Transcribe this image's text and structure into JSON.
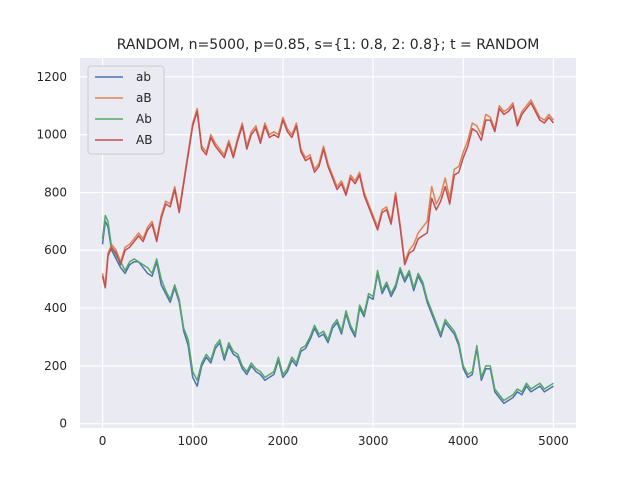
{
  "chart_data": {
    "type": "line",
    "title": "RANDOM, n=5000, p=0.85, s={1: 0.8, 2: 0.8}; t = RANDOM",
    "xlabel": "",
    "ylabel": "",
    "xlim": [
      -250,
      5250
    ],
    "ylim": [
      -15,
      1265
    ],
    "xticks": [
      0,
      1000,
      2000,
      3000,
      4000,
      5000
    ],
    "yticks": [
      0,
      200,
      400,
      600,
      800,
      1000,
      1200
    ],
    "grid": true,
    "legend_position": "top-left",
    "series": [
      {
        "name": "ab",
        "color": "#4c72b0",
        "x": [
          0,
          30,
          60,
          100,
          150,
          200,
          250,
          300,
          350,
          400,
          450,
          500,
          550,
          600,
          650,
          700,
          750,
          800,
          850,
          900,
          950,
          1000,
          1050,
          1100,
          1150,
          1200,
          1250,
          1300,
          1350,
          1400,
          1450,
          1500,
          1550,
          1600,
          1650,
          1700,
          1750,
          1800,
          1850,
          1900,
          1950,
          2000,
          2050,
          2100,
          2150,
          2200,
          2250,
          2300,
          2350,
          2400,
          2450,
          2500,
          2550,
          2600,
          2650,
          2700,
          2750,
          2800,
          2850,
          2900,
          2950,
          3000,
          3050,
          3100,
          3150,
          3200,
          3250,
          3300,
          3350,
          3400,
          3450,
          3500,
          3550,
          3600,
          3650,
          3700,
          3750,
          3800,
          3850,
          3900,
          3950,
          4000,
          4050,
          4100,
          4150,
          4200,
          4250,
          4300,
          4350,
          4400,
          4450,
          4500,
          4550,
          4600,
          4650,
          4700,
          4750,
          4800,
          4850,
          4900,
          4950,
          5000
        ],
        "values": [
          620,
          700,
          680,
          600,
          570,
          540,
          520,
          550,
          560,
          560,
          540,
          520,
          510,
          560,
          480,
          450,
          420,
          470,
          420,
          320,
          270,
          160,
          130,
          200,
          230,
          210,
          260,
          280,
          220,
          270,
          240,
          230,
          190,
          170,
          200,
          180,
          170,
          150,
          160,
          170,
          220,
          160,
          180,
          220,
          200,
          250,
          260,
          290,
          330,
          300,
          310,
          280,
          330,
          350,
          310,
          380,
          330,
          300,
          400,
          370,
          440,
          430,
          520,
          450,
          480,
          440,
          470,
          530,
          490,
          520,
          460,
          510,
          480,
          420,
          380,
          340,
          300,
          350,
          330,
          310,
          270,
          190,
          160,
          170,
          260,
          150,
          190,
          190,
          110,
          90,
          70,
          80,
          90,
          110,
          100,
          130,
          110,
          120,
          130,
          110,
          120,
          130
        ]
      },
      {
        "name": "aB",
        "color": "#dd8452",
        "x": [
          0,
          30,
          60,
          100,
          150,
          200,
          250,
          300,
          350,
          400,
          450,
          500,
          550,
          600,
          650,
          700,
          750,
          800,
          850,
          900,
          950,
          1000,
          1050,
          1100,
          1150,
          1200,
          1250,
          1300,
          1350,
          1400,
          1450,
          1500,
          1550,
          1600,
          1650,
          1700,
          1750,
          1800,
          1850,
          1900,
          1950,
          2000,
          2050,
          2100,
          2150,
          2200,
          2250,
          2300,
          2350,
          2400,
          2450,
          2500,
          2550,
          2600,
          2650,
          2700,
          2750,
          2800,
          2850,
          2900,
          2950,
          3000,
          3050,
          3100,
          3150,
          3200,
          3250,
          3300,
          3350,
          3400,
          3450,
          3500,
          3550,
          3600,
          3650,
          3700,
          3750,
          3800,
          3850,
          3900,
          3950,
          4000,
          4050,
          4100,
          4150,
          4200,
          4250,
          4300,
          4350,
          4400,
          4450,
          4500,
          4550,
          4600,
          4650,
          4700,
          4750,
          4800,
          4850,
          4900,
          4950,
          5000
        ],
        "values": [
          520,
          480,
          590,
          620,
          600,
          560,
          610,
          620,
          640,
          660,
          640,
          680,
          700,
          640,
          720,
          770,
          760,
          820,
          740,
          840,
          940,
          1040,
          1090,
          960,
          940,
          1000,
          970,
          950,
          930,
          980,
          930,
          990,
          1040,
          960,
          1010,
          1030,
          980,
          1040,
          1000,
          1010,
          1000,
          1060,
          1020,
          1000,
          1040,
          950,
          920,
          930,
          880,
          900,
          960,
          900,
          860,
          820,
          840,
          800,
          860,
          840,
          870,
          800,
          760,
          720,
          680,
          740,
          750,
          700,
          800,
          690,
          560,
          600,
          620,
          660,
          680,
          700,
          820,
          760,
          790,
          850,
          780,
          880,
          890,
          940,
          980,
          1040,
          1030,
          1000,
          1070,
          1060,
          1020,
          1100,
          1080,
          1090,
          1110,
          1040,
          1080,
          1100,
          1120,
          1090,
          1060,
          1050,
          1070,
          1050
        ]
      },
      {
        "name": "Ab",
        "color": "#55a868",
        "x": [
          0,
          30,
          60,
          100,
          150,
          200,
          250,
          300,
          350,
          400,
          450,
          500,
          550,
          600,
          650,
          700,
          750,
          800,
          850,
          900,
          950,
          1000,
          1050,
          1100,
          1150,
          1200,
          1250,
          1300,
          1350,
          1400,
          1450,
          1500,
          1550,
          1600,
          1650,
          1700,
          1750,
          1800,
          1850,
          1900,
          1950,
          2000,
          2050,
          2100,
          2150,
          2200,
          2250,
          2300,
          2350,
          2400,
          2450,
          2500,
          2550,
          2600,
          2650,
          2700,
          2750,
          2800,
          2850,
          2900,
          2950,
          3000,
          3050,
          3100,
          3150,
          3200,
          3250,
          3300,
          3350,
          3400,
          3450,
          3500,
          3550,
          3600,
          3650,
          3700,
          3750,
          3800,
          3850,
          3900,
          3950,
          4000,
          4050,
          4100,
          4150,
          4200,
          4250,
          4300,
          4350,
          4400,
          4450,
          4500,
          4550,
          4600,
          4650,
          4700,
          4750,
          4800,
          4850,
          4900,
          4950,
          5000
        ],
        "values": [
          640,
          720,
          700,
          610,
          580,
          560,
          530,
          560,
          570,
          560,
          550,
          540,
          520,
          570,
          500,
          460,
          430,
          480,
          430,
          330,
          290,
          180,
          150,
          210,
          240,
          220,
          270,
          290,
          230,
          280,
          250,
          240,
          200,
          180,
          210,
          190,
          180,
          160,
          170,
          180,
          230,
          170,
          190,
          230,
          210,
          260,
          270,
          300,
          340,
          310,
          320,
          290,
          340,
          360,
          320,
          390,
          340,
          310,
          410,
          380,
          450,
          440,
          530,
          460,
          490,
          450,
          480,
          540,
          500,
          530,
          470,
          520,
          490,
          430,
          390,
          350,
          310,
          360,
          340,
          320,
          280,
          200,
          170,
          180,
          270,
          160,
          200,
          200,
          120,
          100,
          80,
          90,
          100,
          120,
          110,
          140,
          120,
          130,
          140,
          120,
          130,
          140
        ]
      },
      {
        "name": "AB",
        "color": "#c44e52",
        "x": [
          0,
          30,
          60,
          100,
          150,
          200,
          250,
          300,
          350,
          400,
          450,
          500,
          550,
          600,
          650,
          700,
          750,
          800,
          850,
          900,
          950,
          1000,
          1050,
          1100,
          1150,
          1200,
          1250,
          1300,
          1350,
          1400,
          1450,
          1500,
          1550,
          1600,
          1650,
          1700,
          1750,
          1800,
          1850,
          1900,
          1950,
          2000,
          2050,
          2100,
          2150,
          2200,
          2250,
          2300,
          2350,
          2400,
          2450,
          2500,
          2550,
          2600,
          2650,
          2700,
          2750,
          2800,
          2850,
          2900,
          2950,
          3000,
          3050,
          3100,
          3150,
          3200,
          3250,
          3300,
          3350,
          3400,
          3450,
          3500,
          3550,
          3600,
          3650,
          3700,
          3750,
          3800,
          3850,
          3900,
          3950,
          4000,
          4050,
          4100,
          4150,
          4200,
          4250,
          4300,
          4350,
          4400,
          4450,
          4500,
          4550,
          4600,
          4650,
          4700,
          4750,
          4800,
          4850,
          4900,
          4950,
          5000
        ],
        "values": [
          510,
          470,
          580,
          610,
          590,
          550,
          600,
          610,
          630,
          650,
          630,
          670,
          690,
          630,
          710,
          760,
          750,
          810,
          730,
          830,
          930,
          1030,
          1080,
          950,
          930,
          990,
          960,
          940,
          920,
          970,
          920,
          980,
          1030,
          950,
          1000,
          1020,
          970,
          1030,
          990,
          1000,
          990,
          1050,
          1010,
          990,
          1030,
          940,
          910,
          920,
          870,
          890,
          950,
          890,
          850,
          810,
          830,
          790,
          850,
          830,
          860,
          790,
          750,
          710,
          670,
          730,
          740,
          690,
          790,
          680,
          550,
          590,
          600,
          640,
          650,
          660,
          780,
          740,
          770,
          820,
          760,
          860,
          870,
          920,
          960,
          1020,
          1010,
          980,
          1050,
          1050,
          1010,
          1090,
          1070,
          1080,
          1100,
          1030,
          1070,
          1090,
          1110,
          1080,
          1050,
          1040,
          1060,
          1040
        ]
      }
    ]
  }
}
